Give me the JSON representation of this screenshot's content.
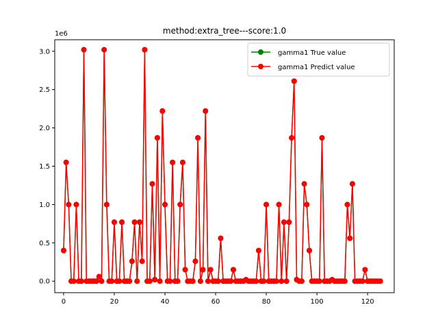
{
  "chart_data": {
    "type": "line",
    "title": "method:extra_tree---score:1.0",
    "xlabel": "",
    "ylabel": "",
    "y_offset_label": "1e6",
    "xlim": [
      -3.5,
      130.5
    ],
    "ylim": [
      -0.15,
      3.15
    ],
    "x_ticks": [
      0,
      20,
      40,
      60,
      80,
      100,
      120
    ],
    "y_ticks": [
      0.0,
      0.5,
      1.0,
      1.5,
      2.0,
      2.5,
      3.0
    ],
    "y_tick_labels": [
      "0.0",
      "0.5",
      "1.0",
      "1.5",
      "2.0",
      "2.5",
      "3.0"
    ],
    "grid": false,
    "legend_position": "top-right",
    "series": [
      {
        "name": "gamma1 True value",
        "color": "#008000",
        "marker": "circle",
        "values": [
          0.4,
          1.55,
          1.0,
          0.0,
          0.0,
          1.0,
          0.0,
          0.0,
          3.02,
          0.0,
          0.0,
          0.0,
          0.0,
          0.0,
          0.06,
          0.0,
          3.02,
          1.0,
          0.0,
          0.0,
          0.77,
          0.0,
          0.0,
          0.77,
          0.0,
          0.0,
          0.0,
          0.26,
          0.77,
          0.0,
          0.77,
          0.26,
          3.02,
          0.0,
          0.0,
          1.27,
          0.02,
          1.87,
          0.0,
          2.22,
          1.0,
          0.0,
          0.0,
          1.55,
          0.0,
          0.0,
          1.0,
          1.55,
          0.15,
          0.0,
          0.0,
          0.0,
          0.26,
          1.87,
          0.0,
          0.15,
          2.22,
          0.0,
          0.15,
          0.0,
          0.0,
          0.0,
          0.56,
          0.0,
          0.0,
          0.0,
          0.0,
          0.15,
          0.0,
          0.0,
          0.0,
          0.0,
          0.02,
          0.0,
          0.0,
          0.0,
          0.0,
          0.4,
          0.0,
          0.0,
          1.0,
          0.0,
          0.0,
          0.0,
          0.0,
          1.0,
          0.0,
          0.77,
          0.0,
          0.77,
          1.87,
          2.61,
          0.02,
          0.0,
          0.0,
          1.27,
          1.0,
          0.4,
          0.0,
          0.0,
          0.0,
          0.0,
          1.87,
          0.0,
          0.0,
          0.0,
          0.02,
          0.0,
          0.0,
          0.0,
          0.0,
          0.0,
          1.0,
          0.56,
          1.27,
          0.0,
          0.0,
          0.0,
          0.0,
          0.15,
          0.0,
          0.0,
          0.0,
          0.0,
          0.0,
          0.0
        ]
      },
      {
        "name": "gamma1 Predict value",
        "color": "#ff0000",
        "marker": "circle",
        "values": [
          0.4,
          1.55,
          1.0,
          0.0,
          0.0,
          1.0,
          0.0,
          0.0,
          3.02,
          0.0,
          0.0,
          0.0,
          0.0,
          0.0,
          0.06,
          0.0,
          3.02,
          1.0,
          0.0,
          0.0,
          0.77,
          0.0,
          0.0,
          0.77,
          0.0,
          0.0,
          0.0,
          0.26,
          0.77,
          0.0,
          0.77,
          0.26,
          3.02,
          0.0,
          0.0,
          1.27,
          0.02,
          1.87,
          0.0,
          2.22,
          1.0,
          0.0,
          0.0,
          1.55,
          0.0,
          0.0,
          1.0,
          1.55,
          0.15,
          0.0,
          0.0,
          0.0,
          0.26,
          1.87,
          0.0,
          0.15,
          2.22,
          0.0,
          0.15,
          0.0,
          0.0,
          0.0,
          0.56,
          0.0,
          0.0,
          0.0,
          0.0,
          0.15,
          0.0,
          0.0,
          0.0,
          0.0,
          0.02,
          0.0,
          0.0,
          0.0,
          0.0,
          0.4,
          0.0,
          0.0,
          1.0,
          0.0,
          0.0,
          0.0,
          0.0,
          1.0,
          0.0,
          0.77,
          0.0,
          0.77,
          1.87,
          2.61,
          0.02,
          0.0,
          0.0,
          1.27,
          1.0,
          0.4,
          0.0,
          0.0,
          0.0,
          0.0,
          1.87,
          0.0,
          0.0,
          0.0,
          0.02,
          0.0,
          0.0,
          0.0,
          0.0,
          0.0,
          1.0,
          0.56,
          1.27,
          0.0,
          0.0,
          0.0,
          0.0,
          0.15,
          0.0,
          0.0,
          0.0,
          0.0,
          0.0,
          0.0
        ]
      }
    ]
  }
}
